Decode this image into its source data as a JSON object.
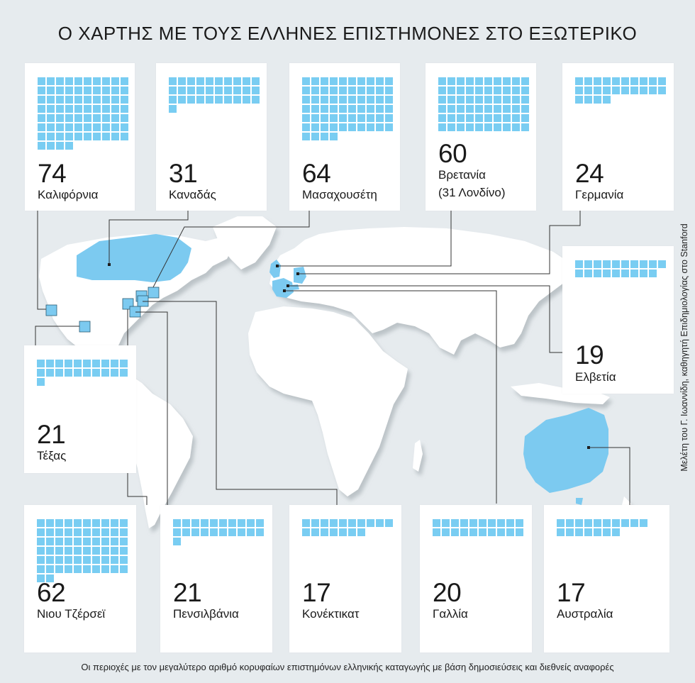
{
  "title": "Ο ΧΑΡΤΗΣ ΜΕ ΤΟΥΣ ΕΛΛΗΝΕΣ ΕΠΙΣΤΗΜΟΝΕΣ ΣΤΟ ΕΞΩΤΕΡΙΚΟ",
  "caption": "Οι περιοχές με τον μεγαλύτερο αριθμό κορυφαίων επιστημόνων ελληνικής καταγωγής με βάση δημοσιεύσεις και διεθνείς αναφορές",
  "credit": "Μελέτη του Γ. Ιωαννίδη, καθηγητή Επιδημιολογίας στο Stanford",
  "colors": {
    "square": "#79cdf2",
    "highlight": "#7ccaf0",
    "land": "#ffffff",
    "background": "#e6ebee",
    "leader": "#333333"
  },
  "regions": [
    {
      "id": "california",
      "count": 74,
      "count_label": "74",
      "label": "Καλιφόρνια"
    },
    {
      "id": "canada",
      "count": 31,
      "count_label": "31",
      "label": "Καναδάς"
    },
    {
      "id": "massachusetts",
      "count": 64,
      "count_label": "64",
      "label": "Μασαχουσέτη"
    },
    {
      "id": "britain",
      "count": 60,
      "count_label": "60",
      "label": "Βρετανία",
      "note": "(31 Λονδίνο)"
    },
    {
      "id": "germany",
      "count": 24,
      "count_label": "24",
      "label": "Γερμανία"
    },
    {
      "id": "switzerland",
      "count": 19,
      "count_label": "19",
      "label": "Ελβετία"
    },
    {
      "id": "texas",
      "count": 21,
      "count_label": "21",
      "label": "Τέξας"
    },
    {
      "id": "new-jersey",
      "count": 62,
      "count_label": "62",
      "label": "Νιου Τζέρσεϊ"
    },
    {
      "id": "pennsylvania",
      "count": 21,
      "count_label": "21",
      "label": "Πενσιλβάνια"
    },
    {
      "id": "connecticut",
      "count": 17,
      "count_label": "17",
      "label": "Κονέκτικατ"
    },
    {
      "id": "france",
      "count": 20,
      "count_label": "20",
      "label": "Γαλλία"
    },
    {
      "id": "australia",
      "count": 17,
      "count_label": "17",
      "label": "Αυστραλία"
    }
  ]
}
